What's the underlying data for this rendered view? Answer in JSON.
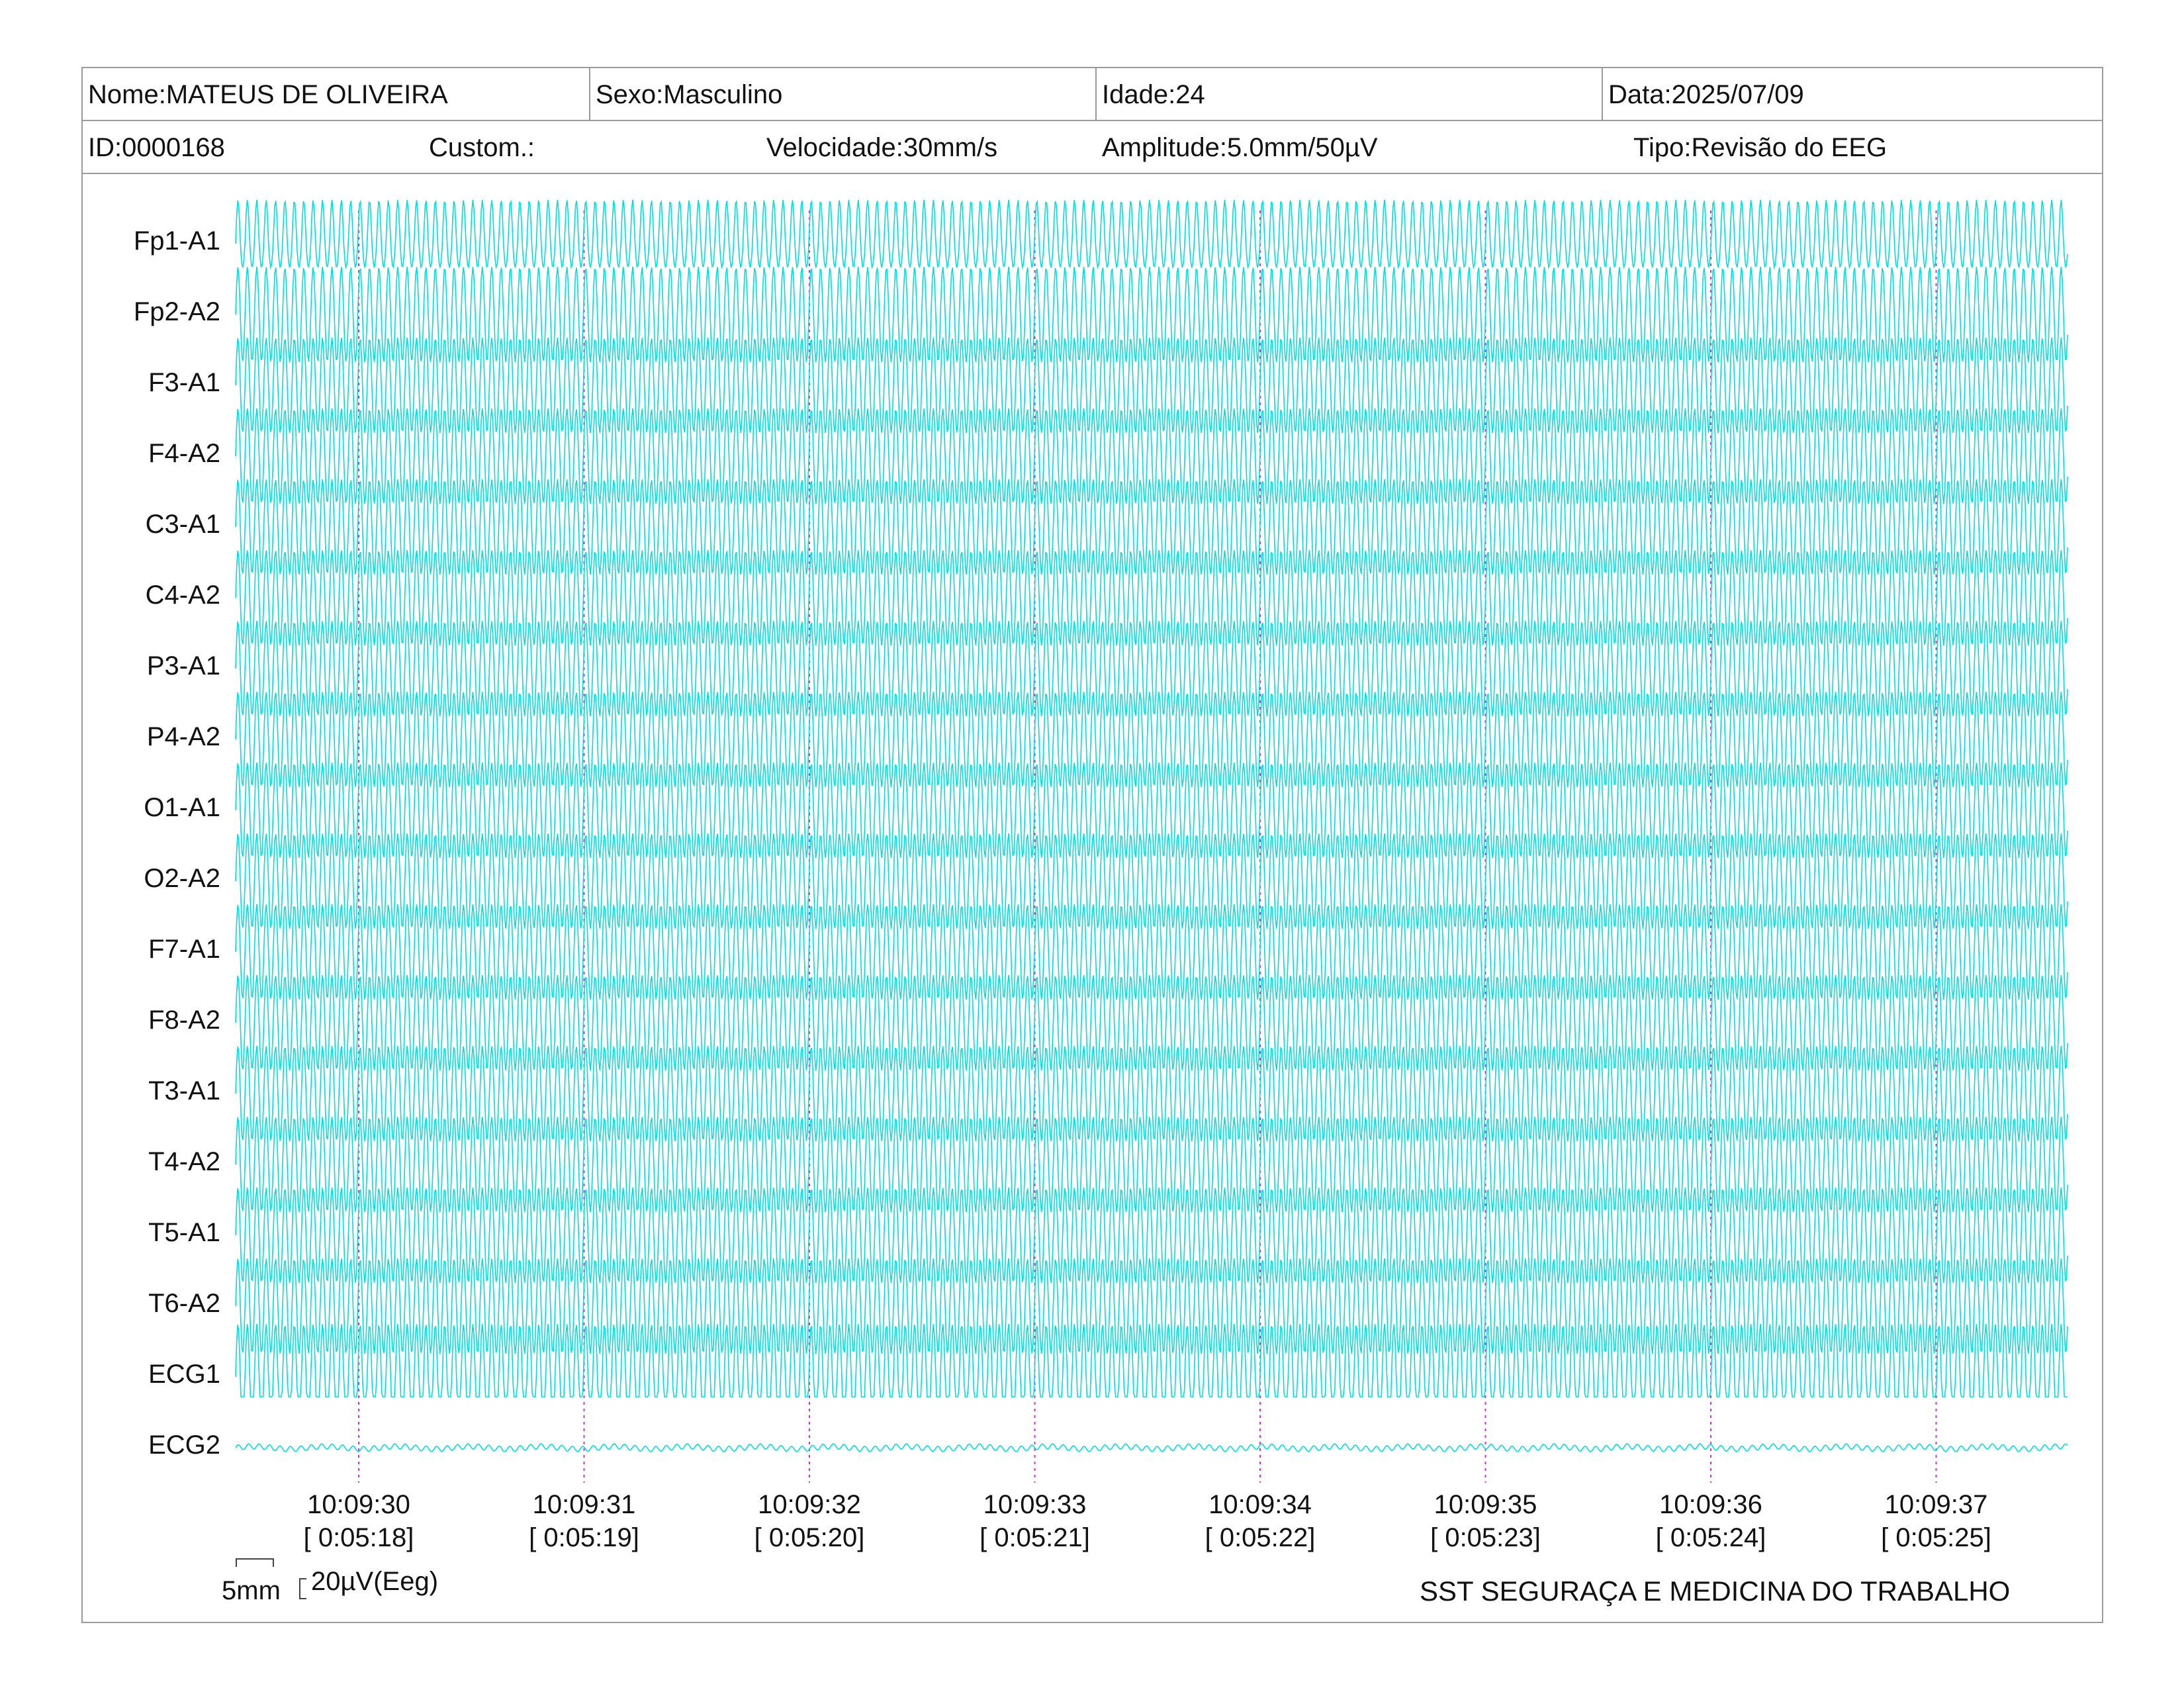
{
  "header": {
    "nome": "Nome:MATEUS DE OLIVEIRA",
    "sexo": "Sexo:Masculino",
    "idade": "Idade:24",
    "data": "Data:2025/07/09",
    "id": "ID:0000168",
    "custom": "Custom.:",
    "velocidade": "Velocidade:30mm/s",
    "amplitude": "Amplitude:5.0mm/50µV",
    "tipo": "Tipo:Revisão do EEG"
  },
  "channels": [
    "Fp1-A1",
    "Fp2-A2",
    "F3-A1",
    "F4-A2",
    "C3-A1",
    "C4-A2",
    "P3-A1",
    "P4-A2",
    "O1-A1",
    "O2-A2",
    "F7-A1",
    "F8-A2",
    "T3-A1",
    "T4-A2",
    "T5-A1",
    "T6-A2",
    "ECG1",
    "ECG2"
  ],
  "time_marks": [
    {
      "clock": "10:09:30",
      "elapsed": "[ 0:05:18]"
    },
    {
      "clock": "10:09:31",
      "elapsed": "[ 0:05:19]"
    },
    {
      "clock": "10:09:32",
      "elapsed": "[ 0:05:20]"
    },
    {
      "clock": "10:09:33",
      "elapsed": "[ 0:05:21]"
    },
    {
      "clock": "10:09:34",
      "elapsed": "[ 0:05:22]"
    },
    {
      "clock": "10:09:35",
      "elapsed": "[ 0:05:23]"
    },
    {
      "clock": "10:09:36",
      "elapsed": "[ 0:05:24]"
    },
    {
      "clock": "10:09:37",
      "elapsed": "[ 0:05:25]"
    }
  ],
  "scale": {
    "time": "5mm",
    "amplitude": "20µV(Eeg)"
  },
  "footer": "SST SEGURAÇA E MEDICINA DO TRABALHO",
  "colors": {
    "trace": "#00dede",
    "time_marker": "#cc33cc",
    "border": "#9a9a9a"
  }
}
